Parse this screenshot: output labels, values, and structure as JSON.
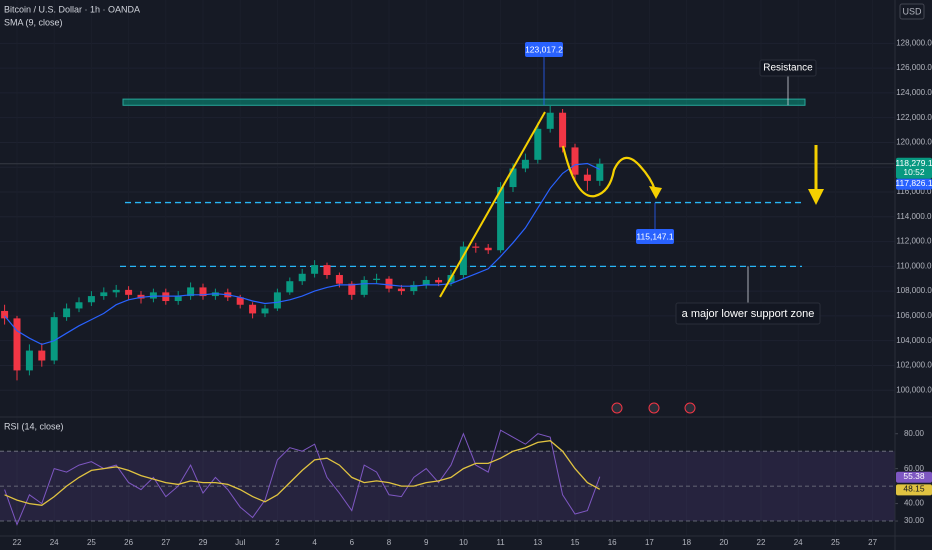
{
  "chart_data": [
    {
      "type": "candlestick",
      "title": "Bitcoin / U.S. Dollar · 1h · OANDA",
      "currency": "USD",
      "categories": [
        null,
        "22",
        null,
        null,
        "24",
        null,
        null,
        "25",
        null,
        null,
        "26",
        null,
        null,
        "27",
        null,
        null,
        "29",
        null,
        null,
        "Jul",
        null,
        null,
        "2",
        null,
        null,
        "4",
        null,
        null,
        "6",
        null,
        null,
        "8",
        null,
        null,
        "9",
        null,
        null,
        "10",
        null,
        null,
        "11",
        null,
        null,
        "13",
        null,
        null,
        "15",
        null,
        null,
        "16",
        null,
        null,
        "17",
        null,
        null,
        "18",
        null,
        null,
        "20",
        null,
        null,
        "22",
        null,
        null,
        "24",
        null,
        null,
        "25",
        null,
        null,
        "27",
        null
      ],
      "open": [
        106400,
        105800,
        101600,
        103200,
        102400,
        105900,
        106600,
        107100,
        107600,
        107900,
        108100,
        107700,
        107400,
        107900,
        107200,
        107600,
        108300,
        107600,
        107900,
        107500,
        106900,
        106200,
        106600,
        107900,
        108800,
        109400,
        110100,
        109300,
        108600,
        107700,
        108900,
        109000,
        108200,
        108000,
        108500,
        108900,
        108700,
        109300,
        111600,
        111500,
        111300,
        116400,
        117900,
        118600,
        121100,
        122400,
        119600,
        117400,
        116900,
        null,
        null,
        null,
        null,
        null,
        null,
        null,
        null,
        null,
        null,
        null,
        null,
        null,
        null,
        null,
        null,
        null,
        null,
        null,
        null,
        null,
        null,
        null
      ],
      "high": [
        106900,
        106000,
        103700,
        103800,
        106300,
        107000,
        107500,
        108000,
        108300,
        108500,
        108400,
        108000,
        108200,
        108200,
        108000,
        108700,
        108600,
        108200,
        108200,
        107700,
        107100,
        106900,
        108200,
        109100,
        109800,
        110500,
        110300,
        109500,
        108800,
        109200,
        109400,
        109200,
        108500,
        108800,
        109200,
        109100,
        109700,
        112000,
        111900,
        111800,
        116800,
        118300,
        119100,
        121600,
        123017.2,
        122700,
        119900,
        117900,
        118700,
        null,
        null,
        null,
        null,
        null,
        null,
        null,
        null,
        null,
        null,
        null,
        null,
        null,
        null,
        null,
        null,
        null,
        null,
        null,
        null,
        null,
        null,
        null
      ],
      "low": [
        105300,
        100800,
        101200,
        101900,
        102100,
        105600,
        106300,
        106800,
        107300,
        107500,
        107300,
        107000,
        107100,
        106900,
        106900,
        107300,
        107300,
        107300,
        107200,
        106600,
        105800,
        105900,
        106400,
        107700,
        108500,
        109100,
        109000,
        108300,
        107300,
        107500,
        108600,
        107900,
        107700,
        107700,
        108200,
        108400,
        108400,
        109000,
        111100,
        111000,
        111100,
        116000,
        117600,
        118300,
        120800,
        119200,
        117000,
        116100,
        116500,
        null,
        null,
        null,
        null,
        null,
        null,
        null,
        null,
        null,
        null,
        null,
        null,
        null,
        null,
        null,
        null,
        null,
        null,
        null,
        null,
        null,
        null,
        null
      ],
      "close": [
        105800,
        101600,
        103200,
        102400,
        105900,
        106600,
        107100,
        107600,
        107900,
        108100,
        107700,
        107400,
        107900,
        107200,
        107600,
        108300,
        107600,
        107900,
        107500,
        106900,
        106200,
        106600,
        107900,
        108800,
        109400,
        110100,
        109300,
        108600,
        107700,
        108900,
        109000,
        108200,
        108000,
        108500,
        108900,
        108700,
        109300,
        111600,
        111500,
        111300,
        116400,
        117900,
        118600,
        121100,
        122400,
        119600,
        117400,
        116900,
        118279.1,
        null,
        null,
        null,
        null,
        null,
        null,
        null,
        null,
        null,
        null,
        null,
        null,
        null,
        null,
        null,
        null,
        null,
        null,
        null,
        null,
        null,
        null,
        null
      ],
      "up_color": "#089981",
      "down_color": "#f23645",
      "series": [
        {
          "name": "SMA (9, close)",
          "color": "#2962ff",
          "values": [
            106000,
            104800,
            104200,
            103700,
            104000,
            104600,
            105200,
            105700,
            106200,
            106900,
            107300,
            107500,
            107600,
            107600,
            107600,
            107700,
            107700,
            107800,
            107700,
            107500,
            107200,
            107000,
            107100,
            107300,
            107600,
            108000,
            108300,
            108500,
            108500,
            108600,
            108600,
            108500,
            108400,
            108400,
            108500,
            108500,
            108600,
            109000,
            109400,
            109800,
            110800,
            111900,
            113100,
            114700,
            116300,
            117500,
            118200,
            118300,
            117826.1,
            null,
            null,
            null,
            null,
            null,
            null,
            null,
            null,
            null,
            null,
            null,
            null,
            null,
            null,
            null,
            null,
            null,
            null,
            null,
            null,
            null,
            null,
            null
          ]
        }
      ],
      "ylim": [
        98000,
        131500
      ],
      "yticks": [
        {
          "value": 100000,
          "label": "100,000.0"
        },
        {
          "value": 102000,
          "label": "102,000.0"
        },
        {
          "value": 104000,
          "label": "104,000.0"
        },
        {
          "value": 106000,
          "label": "106,000.0"
        },
        {
          "value": 108000,
          "label": "108,000.0"
        },
        {
          "value": 110000,
          "label": "110,000.0"
        },
        {
          "value": 112000,
          "label": "112,000.0"
        },
        {
          "value": 114000,
          "label": "114,000.0"
        },
        {
          "value": 116000,
          "label": "116,000.0"
        },
        {
          "value": 118000,
          "label": "118,000.0"
        },
        {
          "value": 120000,
          "label": "120,000.0"
        },
        {
          "value": 122000,
          "label": "122,000.0"
        },
        {
          "value": 124000,
          "label": "124,000.0"
        },
        {
          "value": 126000,
          "label": "126,000.0"
        },
        {
          "value": 128000,
          "label": "128,000.0"
        }
      ],
      "grid": true,
      "last_price": {
        "value": 118279.1,
        "label": "118,279.1"
      },
      "countdown": "10:52",
      "sma_last": {
        "value": 117826.1,
        "label": "117,826.1"
      },
      "peak": {
        "value": 123017.2,
        "label": "123,017.2"
      },
      "target": {
        "value": 115147.1,
        "label": "115,147.1"
      },
      "resistance": {
        "label": "Resistance",
        "low": 123000,
        "high": 123500
      },
      "support": {
        "label": "a major lower support zone",
        "value": 110000
      }
    },
    {
      "type": "line",
      "series": [
        {
          "name": "RSI (14, close)",
          "color": "#7e57c2",
          "last": 55.38,
          "values": [
            48,
            28,
            45,
            40,
            60,
            58,
            62,
            64,
            60,
            62,
            52,
            48,
            55,
            44,
            50,
            62,
            46,
            55,
            48,
            38,
            32,
            42,
            65,
            72,
            70,
            74,
            55,
            46,
            36,
            62,
            58,
            45,
            44,
            55,
            60,
            52,
            62,
            80,
            62,
            58,
            82,
            78,
            74,
            80,
            78,
            45,
            34,
            36,
            55.38,
            null,
            null,
            null,
            null,
            null,
            null,
            null,
            null,
            null,
            null,
            null,
            null,
            null,
            null,
            null,
            null,
            null,
            null,
            null,
            null,
            null,
            null,
            null
          ]
        },
        {
          "color": "#e0c341",
          "last": 48.15,
          "values": [
            45,
            42,
            40,
            39,
            44,
            50,
            55,
            59,
            60,
            61,
            59,
            56,
            54,
            52,
            51,
            53,
            52,
            52,
            51,
            48,
            44,
            41,
            45,
            52,
            59,
            65,
            66,
            62,
            55,
            52,
            53,
            52,
            50,
            50,
            52,
            53,
            55,
            60,
            63,
            63,
            66,
            70,
            72,
            75,
            76,
            70,
            60,
            52,
            48.15,
            null,
            null,
            null,
            null,
            null,
            null,
            null,
            null,
            null,
            null,
            null,
            null,
            null,
            null,
            null,
            null,
            null,
            null,
            null,
            null,
            null,
            null,
            null
          ]
        }
      ],
      "ylim": [
        22,
        89
      ],
      "yticks": [
        {
          "value": 30,
          "label": "30.00"
        },
        {
          "value": 40,
          "label": "40.00"
        },
        {
          "value": 60,
          "label": "60.00"
        },
        {
          "value": 80,
          "label": "80.00"
        }
      ],
      "bands": [
        30,
        50,
        70
      ]
    }
  ]
}
